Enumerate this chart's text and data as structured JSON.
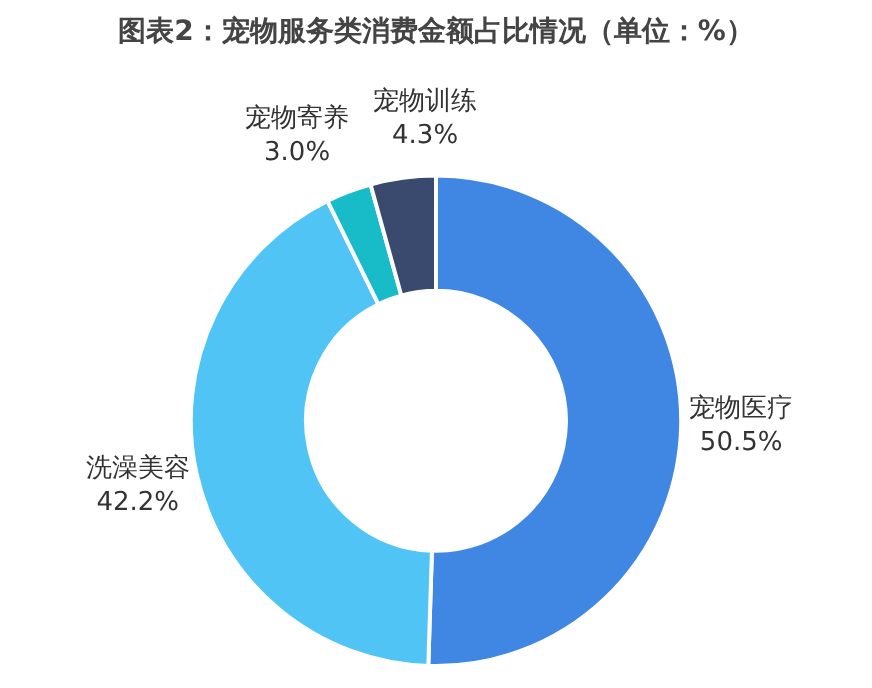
{
  "chart_data": {
    "type": "donut",
    "title": "图表2：宠物服务类消费金额占比情况（单位：%）",
    "categories": [
      "宠物医疗",
      "洗澡美容",
      "宠物寄养",
      "宠物训练"
    ],
    "values": [
      50.5,
      42.2,
      3.0,
      4.3
    ],
    "value_labels": [
      "50.5%",
      "42.2%",
      "3.0%",
      "4.3%"
    ],
    "colors": [
      "#3f87e2",
      "#4fc4f5",
      "#18bcc8",
      "#3a4a6e"
    ],
    "legend": false
  }
}
